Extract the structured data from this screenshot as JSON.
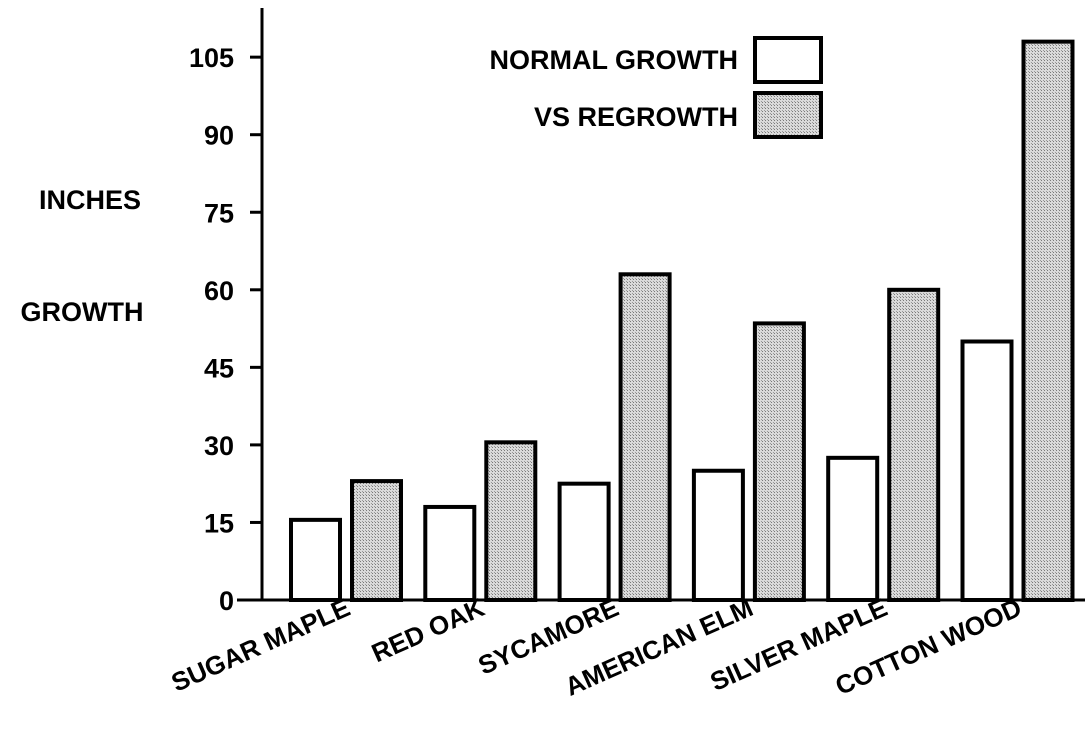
{
  "chart_data": {
    "type": "bar",
    "ylabel_lines": [
      "INCHES",
      "GROWTH"
    ],
    "categories": [
      "SUGAR MAPLE",
      "RED OAK",
      "SYCAMORE",
      "AMERICAN ELM",
      "SILVER MAPLE",
      "COTTON WOOD"
    ],
    "series": [
      {
        "name": "NORMAL GROWTH",
        "values": [
          15.5,
          18,
          22.5,
          25,
          27.5,
          50
        ]
      },
      {
        "name": "VS REGROWTH",
        "values": [
          23,
          30.5,
          63,
          53.5,
          60,
          108
        ]
      }
    ],
    "y_ticks": [
      0,
      15,
      30,
      45,
      60,
      75,
      90,
      105
    ],
    "ylim": [
      0,
      112
    ],
    "grid": false,
    "legend_position": "top-center",
    "colors": {
      "normal": "#ffffff",
      "regrowth": "#c6c6c6",
      "stroke": "#000000"
    }
  }
}
